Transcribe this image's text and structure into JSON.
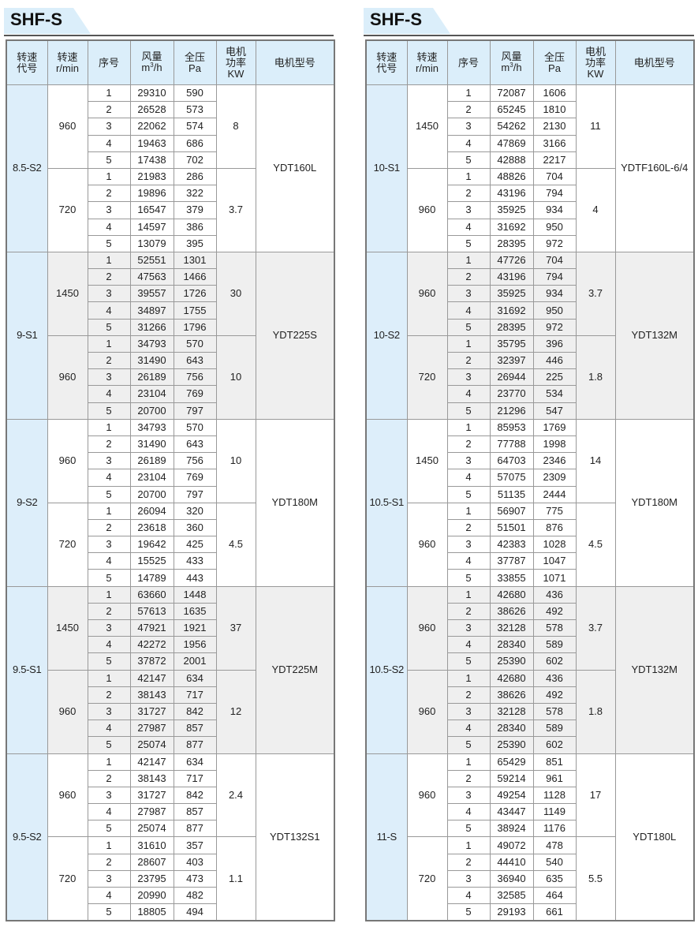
{
  "headers": {
    "code": [
      "转速",
      "代号"
    ],
    "speed": [
      "转速",
      "r/min"
    ],
    "seq": "序号",
    "flow": [
      "风量",
      "m",
      "3",
      "/h"
    ],
    "pressure": [
      "全压",
      "Pa"
    ],
    "power": [
      "电机",
      "功率",
      "KW"
    ],
    "motor": "电机型号"
  },
  "tables": [
    {
      "title": "SHF-S",
      "groups": [
        {
          "code": "8.5-S2",
          "motor": "YDT160L",
          "speeds": [
            {
              "rpm": "960",
              "kw": "8",
              "rows": [
                [
                  "1",
                  "29310",
                  "590"
                ],
                [
                  "2",
                  "26528",
                  "573"
                ],
                [
                  "3",
                  "22062",
                  "574"
                ],
                [
                  "4",
                  "19463",
                  "686"
                ],
                [
                  "5",
                  "17438",
                  "702"
                ]
              ]
            },
            {
              "rpm": "720",
              "kw": "3.7",
              "rows": [
                [
                  "1",
                  "21983",
                  "286"
                ],
                [
                  "2",
                  "19896",
                  "322"
                ],
                [
                  "3",
                  "16547",
                  "379"
                ],
                [
                  "4",
                  "14597",
                  "386"
                ],
                [
                  "5",
                  "13079",
                  "395"
                ]
              ]
            }
          ]
        },
        {
          "code": "9-S1",
          "motor": "YDT225S",
          "speeds": [
            {
              "rpm": "1450",
              "kw": "30",
              "rows": [
                [
                  "1",
                  "52551",
                  "1301"
                ],
                [
                  "2",
                  "47563",
                  "1466"
                ],
                [
                  "3",
                  "39557",
                  "1726"
                ],
                [
                  "4",
                  "34897",
                  "1755"
                ],
                [
                  "5",
                  "31266",
                  "1796"
                ]
              ]
            },
            {
              "rpm": "960",
              "kw": "10",
              "rows": [
                [
                  "1",
                  "34793",
                  "570"
                ],
                [
                  "2",
                  "31490",
                  "643"
                ],
                [
                  "3",
                  "26189",
                  "756"
                ],
                [
                  "4",
                  "23104",
                  "769"
                ],
                [
                  "5",
                  "20700",
                  "797"
                ]
              ]
            }
          ]
        },
        {
          "code": "9-S2",
          "motor": "YDT180M",
          "speeds": [
            {
              "rpm": "960",
              "kw": "10",
              "rows": [
                [
                  "1",
                  "34793",
                  "570"
                ],
                [
                  "2",
                  "31490",
                  "643"
                ],
                [
                  "3",
                  "26189",
                  "756"
                ],
                [
                  "4",
                  "23104",
                  "769"
                ],
                [
                  "5",
                  "20700",
                  "797"
                ]
              ]
            },
            {
              "rpm": "720",
              "kw": "4.5",
              "rows": [
                [
                  "1",
                  "26094",
                  "320"
                ],
                [
                  "2",
                  "23618",
                  "360"
                ],
                [
                  "3",
                  "19642",
                  "425"
                ],
                [
                  "4",
                  "15525",
                  "433"
                ],
                [
                  "5",
                  "14789",
                  "443"
                ]
              ]
            }
          ]
        },
        {
          "code": "9.5-S1",
          "motor": "YDT225M",
          "speeds": [
            {
              "rpm": "1450",
              "kw": "37",
              "rows": [
                [
                  "1",
                  "63660",
                  "1448"
                ],
                [
                  "2",
                  "57613",
                  "1635"
                ],
                [
                  "3",
                  "47921",
                  "1921"
                ],
                [
                  "4",
                  "42272",
                  "1956"
                ],
                [
                  "5",
                  "37872",
                  "2001"
                ]
              ]
            },
            {
              "rpm": "960",
              "kw": "12",
              "rows": [
                [
                  "1",
                  "42147",
                  "634"
                ],
                [
                  "2",
                  "38143",
                  "717"
                ],
                [
                  "3",
                  "31727",
                  "842"
                ],
                [
                  "4",
                  "27987",
                  "857"
                ],
                [
                  "5",
                  "25074",
                  "877"
                ]
              ]
            }
          ]
        },
        {
          "code": "9.5-S2",
          "motor": "YDT132S1",
          "speeds": [
            {
              "rpm": "960",
              "kw": "2.4",
              "rows": [
                [
                  "1",
                  "42147",
                  "634"
                ],
                [
                  "2",
                  "38143",
                  "717"
                ],
                [
                  "3",
                  "31727",
                  "842"
                ],
                [
                  "4",
                  "27987",
                  "857"
                ],
                [
                  "5",
                  "25074",
                  "877"
                ]
              ]
            },
            {
              "rpm": "720",
              "kw": "1.1",
              "rows": [
                [
                  "1",
                  "31610",
                  "357"
                ],
                [
                  "2",
                  "28607",
                  "403"
                ],
                [
                  "3",
                  "23795",
                  "473"
                ],
                [
                  "4",
                  "20990",
                  "482"
                ],
                [
                  "5",
                  "18805",
                  "494"
                ]
              ]
            }
          ]
        }
      ]
    },
    {
      "title": "SHF-S",
      "groups": [
        {
          "code": "10-S1",
          "motor": "YDTF160L-6/4",
          "speeds": [
            {
              "rpm": "1450",
              "kw": "11",
              "rows": [
                [
                  "1",
                  "72087",
                  "1606"
                ],
                [
                  "2",
                  "65245",
                  "1810"
                ],
                [
                  "3",
                  "54262",
                  "2130"
                ],
                [
                  "4",
                  "47869",
                  "3166"
                ],
                [
                  "5",
                  "42888",
                  "2217"
                ]
              ]
            },
            {
              "rpm": "960",
              "kw": "4",
              "rows": [
                [
                  "1",
                  "48826",
                  "704"
                ],
                [
                  "2",
                  "43196",
                  "794"
                ],
                [
                  "3",
                  "35925",
                  "934"
                ],
                [
                  "4",
                  "31692",
                  "950"
                ],
                [
                  "5",
                  "28395",
                  "972"
                ]
              ]
            }
          ]
        },
        {
          "code": "10-S2",
          "motor": "YDT132M",
          "speeds": [
            {
              "rpm": "960",
              "kw": "3.7",
              "rows": [
                [
                  "1",
                  "47726",
                  "704"
                ],
                [
                  "2",
                  "43196",
                  "794"
                ],
                [
                  "3",
                  "35925",
                  "934"
                ],
                [
                  "4",
                  "31692",
                  "950"
                ],
                [
                  "5",
                  "28395",
                  "972"
                ]
              ]
            },
            {
              "rpm": "720",
              "kw": "1.8",
              "rows": [
                [
                  "1",
                  "35795",
                  "396"
                ],
                [
                  "2",
                  "32397",
                  "446"
                ],
                [
                  "3",
                  "26944",
                  "225"
                ],
                [
                  "4",
                  "23770",
                  "534"
                ],
                [
                  "5",
                  "21296",
                  "547"
                ]
              ]
            }
          ]
        },
        {
          "code": "10.5-S1",
          "motor": "YDT180M",
          "speeds": [
            {
              "rpm": "1450",
              "kw": "14",
              "rows": [
                [
                  "1",
                  "85953",
                  "1769"
                ],
                [
                  "2",
                  "77788",
                  "1998"
                ],
                [
                  "3",
                  "64703",
                  "2346"
                ],
                [
                  "4",
                  "57075",
                  "2309"
                ],
                [
                  "5",
                  "51135",
                  "2444"
                ]
              ]
            },
            {
              "rpm": "960",
              "kw": "4.5",
              "rows": [
                [
                  "1",
                  "56907",
                  "775"
                ],
                [
                  "2",
                  "51501",
                  "876"
                ],
                [
                  "3",
                  "42383",
                  "1028"
                ],
                [
                  "4",
                  "37787",
                  "1047"
                ],
                [
                  "5",
                  "33855",
                  "1071"
                ]
              ]
            }
          ]
        },
        {
          "code": "10.5-S2",
          "motor": "YDT132M",
          "speeds": [
            {
              "rpm": "960",
              "kw": "3.7",
              "rows": [
                [
                  "1",
                  "42680",
                  "436"
                ],
                [
                  "2",
                  "38626",
                  "492"
                ],
                [
                  "3",
                  "32128",
                  "578"
                ],
                [
                  "4",
                  "28340",
                  "589"
                ],
                [
                  "5",
                  "25390",
                  "602"
                ]
              ]
            },
            {
              "rpm": "960",
              "kw": "1.8",
              "rows": [
                [
                  "1",
                  "42680",
                  "436"
                ],
                [
                  "2",
                  "38626",
                  "492"
                ],
                [
                  "3",
                  "32128",
                  "578"
                ],
                [
                  "4",
                  "28340",
                  "589"
                ],
                [
                  "5",
                  "25390",
                  "602"
                ]
              ]
            }
          ]
        },
        {
          "code": "11-S",
          "motor": "YDT180L",
          "speeds": [
            {
              "rpm": "960",
              "kw": "17",
              "rows": [
                [
                  "1",
                  "65429",
                  "851"
                ],
                [
                  "2",
                  "59214",
                  "961"
                ],
                [
                  "3",
                  "49254",
                  "1128"
                ],
                [
                  "4",
                  "43447",
                  "1149"
                ],
                [
                  "5",
                  "38924",
                  "1176"
                ]
              ]
            },
            {
              "rpm": "720",
              "kw": "5.5",
              "rows": [
                [
                  "1",
                  "49072",
                  "478"
                ],
                [
                  "2",
                  "44410",
                  "540"
                ],
                [
                  "3",
                  "36940",
                  "635"
                ],
                [
                  "4",
                  "32585",
                  "464"
                ],
                [
                  "5",
                  "29193",
                  "661"
                ]
              ]
            }
          ]
        }
      ]
    }
  ]
}
